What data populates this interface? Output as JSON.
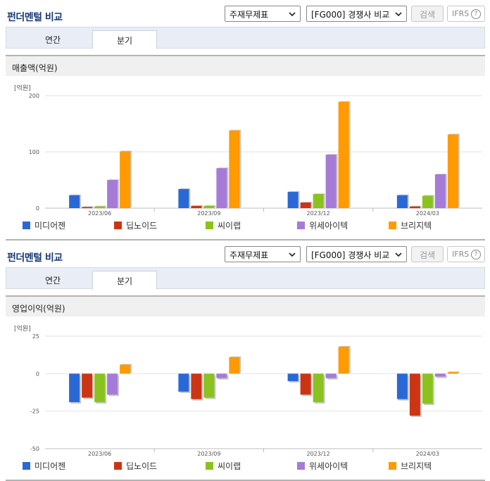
{
  "panels": [
    {
      "title": "펀더멘털 비교",
      "select_1": "주재무제표",
      "select_2": "[FG000] 경쟁사 비교",
      "search_label": "검색",
      "ifrs_label": "IFRS",
      "help_glyph": "?",
      "tabs": [
        {
          "label": "연간"
        },
        {
          "label": "분기"
        }
      ],
      "active_tab": "분기",
      "chart_heading": "매출액(억원)"
    },
    {
      "title": "펀더멘털 비교",
      "select_1": "주재무제표",
      "select_2": "[FG000] 경쟁사 비교",
      "search_label": "검색",
      "ifrs_label": "IFRS",
      "help_glyph": "?",
      "tabs": [
        {
          "label": "연간"
        },
        {
          "label": "분기"
        }
      ],
      "active_tab": "분기",
      "chart_heading": "영업이익(억원)"
    }
  ],
  "chart_data": [
    {
      "type": "bar",
      "title": "매출액(억원)",
      "unit_label": "[억원]",
      "categories": [
        "2023/06",
        "2023/09",
        "2023/12",
        "2024/03"
      ],
      "ylim": [
        0,
        200
      ],
      "yticks": [
        0,
        100,
        200
      ],
      "grid": true,
      "legend_position": "bottom",
      "series": [
        {
          "name": "미디어젠",
          "color": "#2a68d6",
          "values": [
            23,
            34,
            29,
            23
          ]
        },
        {
          "name": "딥노이드",
          "color": "#cc3514",
          "values": [
            2,
            4,
            10,
            3
          ]
        },
        {
          "name": "씨이랩",
          "color": "#8bc21f",
          "values": [
            3,
            4,
            25,
            22
          ]
        },
        {
          "name": "위세아이텍",
          "color": "#a67bd8",
          "values": [
            50,
            71,
            95,
            60
          ]
        },
        {
          "name": "브리지텍",
          "color": "#ff9a00",
          "values": [
            101,
            138,
            189,
            131
          ]
        }
      ]
    },
    {
      "type": "bar",
      "title": "영업이익(억원)",
      "unit_label": "[억원]",
      "categories": [
        "2023/06",
        "2023/09",
        "2023/12",
        "2024/03"
      ],
      "ylim": [
        -50,
        25
      ],
      "yticks": [
        25,
        0,
        -25,
        -50
      ],
      "grid": true,
      "legend_position": "bottom",
      "series": [
        {
          "name": "미디어젠",
          "color": "#2a68d6",
          "values": [
            -19,
            -12,
            -5,
            -17
          ]
        },
        {
          "name": "딥노이드",
          "color": "#cc3514",
          "values": [
            -16,
            -17,
            -14,
            -28
          ]
        },
        {
          "name": "씨이랩",
          "color": "#8bc21f",
          "values": [
            -19,
            -16,
            -19,
            -20
          ]
        },
        {
          "name": "위세아이텍",
          "color": "#a67bd8",
          "values": [
            -14,
            -3,
            -3,
            -2
          ]
        },
        {
          "name": "브리지텍",
          "color": "#ff9a00",
          "values": [
            6,
            11,
            18,
            1
          ]
        }
      ]
    }
  ]
}
